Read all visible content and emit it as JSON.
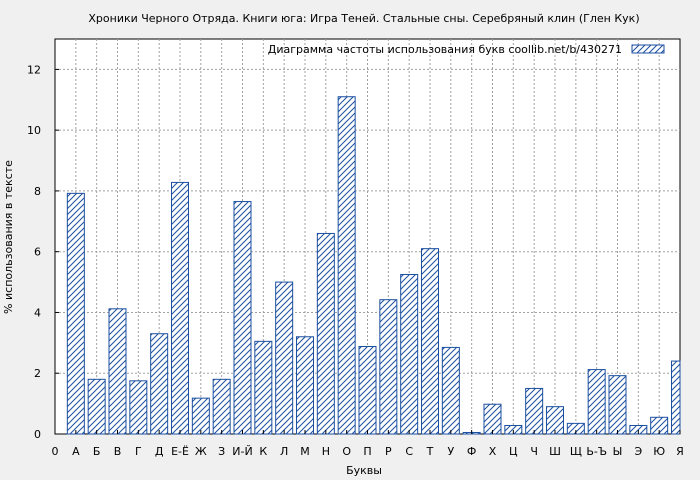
{
  "chart_data": {
    "type": "bar",
    "title": "Хроники Черного Отряда. Книги юга: Игра Теней. Стальные сны. Серебряный клин (Глен Кук)",
    "xlabel": "Буквы",
    "ylabel": "% использования в тексте",
    "legend": "Диаграмма частоты использования букв  coollib.net/b/430271",
    "legend_position": "top-right",
    "grid": true,
    "ylim": [
      0,
      13
    ],
    "yticks": [
      0,
      2,
      4,
      6,
      8,
      10,
      12
    ],
    "categories": [
      "0",
      "А",
      "Б",
      "В",
      "Г",
      "Д",
      "Е-Ё",
      "Ж",
      "З",
      "И-Й",
      "К",
      "Л",
      "М",
      "Н",
      "О",
      "П",
      "Р",
      "С",
      "Т",
      "У",
      "Ф",
      "Х",
      "Ц",
      "Ч",
      "Ш",
      "Щ",
      "Ь-Ъ",
      "Ы",
      "Э",
      "Ю",
      "Я"
    ],
    "values": [
      null,
      7.92,
      1.8,
      4.12,
      1.75,
      3.3,
      8.28,
      1.18,
      1.8,
      7.65,
      3.05,
      5.0,
      3.2,
      6.6,
      11.1,
      2.88,
      4.42,
      5.25,
      6.1,
      2.85,
      0.05,
      0.98,
      0.28,
      1.5,
      0.9,
      0.35,
      2.12,
      1.92,
      0.28,
      0.55,
      2.4
    ],
    "colors": {
      "bar_stroke": "#1b4fa0",
      "hatch": "#1b4fa0",
      "bar_fill": "#ffffff",
      "plot_bg": "#ffffff",
      "page_bg": "#f0f0f0",
      "grid": "#a0a0a0"
    }
  }
}
